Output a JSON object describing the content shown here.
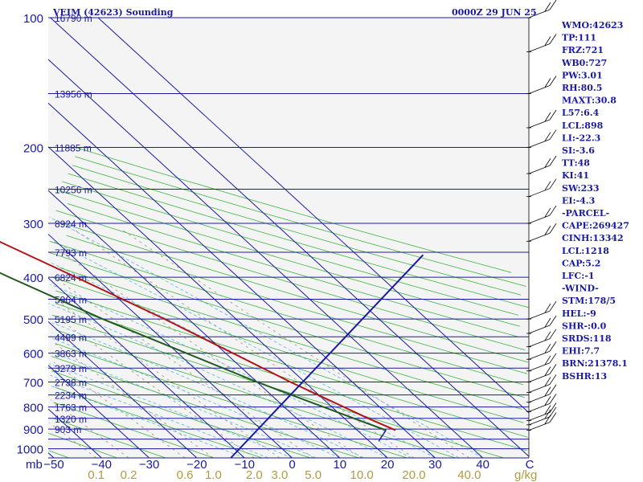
{
  "title_left": "VEIM (42623) Sounding",
  "title_right": "0000Z 29 JUN 25",
  "units": {
    "pressure": "mb",
    "mixing_ratio": "g/kg"
  },
  "chart_data": {
    "type": "line",
    "skew_t": true,
    "pressure_levels": [
      100,
      200,
      300,
      400,
      500,
      600,
      700,
      800,
      900,
      1000
    ],
    "pressure_range": [
      100,
      1050
    ],
    "temperature_ticks": [
      "-50",
      "-40",
      "-30",
      "-20",
      "-10",
      "0",
      "10",
      "20",
      "30",
      "40",
      "C"
    ],
    "mixing_ratio_ticks": [
      "0.1",
      "0.2",
      "0.6",
      "1.0",
      "2.0",
      "3.0",
      "5.0",
      "10.0",
      "20.0",
      "40.0"
    ],
    "height_levels": [
      {
        "p": 100,
        "label": "16790 m"
      },
      {
        "p": 150,
        "label": "13956 m"
      },
      {
        "p": 200,
        "label": "11885 m"
      },
      {
        "p": 250,
        "label": "10256 m"
      },
      {
        "p": 300,
        "label": "8924 m"
      },
      {
        "p": 350,
        "label": "7793 m"
      },
      {
        "p": 400,
        "label": "6824 m"
      },
      {
        "p": 450,
        "label": "5964 m"
      },
      {
        "p": 500,
        "label": "5195 m"
      },
      {
        "p": 550,
        "label": "4499 m"
      },
      {
        "p": 600,
        "label": "3863 m"
      },
      {
        "p": 650,
        "label": "3279 m"
      },
      {
        "p": 700,
        "label": "2738 m"
      },
      {
        "p": 750,
        "label": "2234 m"
      },
      {
        "p": 800,
        "label": "1763 m"
      },
      {
        "p": 850,
        "label": "1320 m"
      },
      {
        "p": 900,
        "label": "903 m"
      }
    ],
    "temperature_profile": [
      {
        "p": 100,
        "t": -55
      },
      {
        "p": 115,
        "t": -61
      },
      {
        "p": 200,
        "t": -32
      },
      {
        "p": 300,
        "t": -16
      },
      {
        "p": 400,
        "t": -4
      },
      {
        "p": 500,
        "t": 5
      },
      {
        "p": 700,
        "t": 17
      },
      {
        "p": 850,
        "t": 25
      },
      {
        "p": 906,
        "t": 28
      }
    ],
    "dewpoint_profile": [
      {
        "p": 100,
        "t": -68
      },
      {
        "p": 115,
        "t": -70
      },
      {
        "p": 200,
        "t": -45
      },
      {
        "p": 300,
        "t": -30
      },
      {
        "p": 400,
        "t": -18
      },
      {
        "p": 500,
        "t": -8
      },
      {
        "p": 700,
        "t": 10
      },
      {
        "p": 850,
        "t": 22
      },
      {
        "p": 906,
        "t": 26
      }
    ],
    "parcel_profile": [
      {
        "p": 906,
        "t": 26
      },
      {
        "p": 960,
        "t": 22
      }
    ],
    "wind_profile": [
      {
        "p": 355,
        "x": 78
      },
      {
        "p": 1050,
        "x": 38
      }
    ],
    "wind_barbs": [
      {
        "p": 100
      },
      {
        "p": 120
      },
      {
        "p": 150
      },
      {
        "p": 180
      },
      {
        "p": 200
      },
      {
        "p": 230
      },
      {
        "p": 260
      },
      {
        "p": 300
      },
      {
        "p": 330
      },
      {
        "p": 500
      },
      {
        "p": 540
      },
      {
        "p": 580
      },
      {
        "p": 620
      },
      {
        "p": 660
      },
      {
        "p": 700
      },
      {
        "p": 740
      },
      {
        "p": 780
      },
      {
        "p": 820
      },
      {
        "p": 860
      },
      {
        "p": 880
      },
      {
        "p": 906
      }
    ]
  },
  "indices": [
    "WMO:42623",
    "TP:111",
    "FRZ:721",
    "WB0:727",
    "PW:3.01",
    "RH:80.5",
    "MAXT:30.8",
    "L57:6.4",
    "LCL:898",
    "LI:-22.3",
    "SI:-3.6",
    "TT:48",
    "KI:41",
    "SW:233",
    "EI:-4.3",
    "-PARCEL-",
    "CAPE:269427",
    "CINH:13342",
    "LCL:1218",
    "CAP:5.2",
    "LFC:-1",
    "-WIND-",
    "STM:178/5",
    "HEL:-9",
    "SHR-:0.0",
    "SRDS:118",
    "EHI:7.7",
    "BRN:21378.1",
    "BSHR:13"
  ]
}
